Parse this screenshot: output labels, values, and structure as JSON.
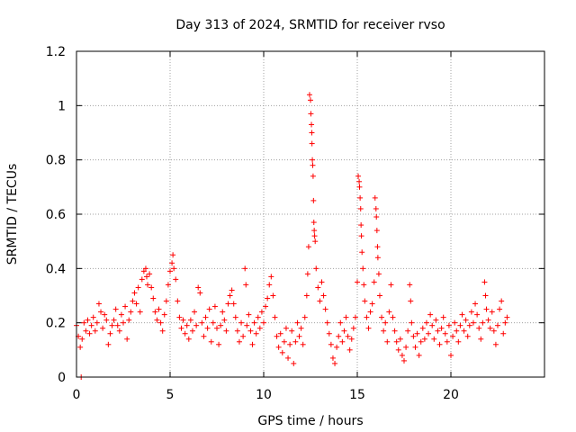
{
  "chart_data": {
    "type": "scatter",
    "title": "Day 313 of 2024, SRMTID for receiver rvso",
    "xlabel": "GPS time / hours",
    "ylabel": "SRMTID / TECUs",
    "xlim": [
      0,
      25
    ],
    "ylim": [
      0,
      1.2
    ],
    "xticks": [
      0,
      5,
      10,
      15,
      20
    ],
    "xtick_labels": [
      "0",
      "5",
      "10",
      "15",
      "20"
    ],
    "yticks": [
      0,
      0.2,
      0.4,
      0.6,
      0.8,
      1,
      1.2
    ],
    "ytick_labels": [
      "0",
      "0.2",
      "0.4",
      "0.6",
      "0.8",
      "1",
      "1.2"
    ],
    "grid": true,
    "marker": "+",
    "color": "#ff0000",
    "series": [
      {
        "name": "SRMTID",
        "points": [
          [
            0.0,
            0.19
          ],
          [
            0.1,
            0.15
          ],
          [
            0.2,
            0.11
          ],
          [
            0.25,
            0.0
          ],
          [
            0.3,
            0.14
          ],
          [
            0.4,
            0.2
          ],
          [
            0.5,
            0.17
          ],
          [
            0.6,
            0.21
          ],
          [
            0.7,
            0.16
          ],
          [
            0.8,
            0.19
          ],
          [
            0.9,
            0.22
          ],
          [
            1.0,
            0.17
          ],
          [
            1.1,
            0.2
          ],
          [
            1.2,
            0.27
          ],
          [
            1.3,
            0.24
          ],
          [
            1.4,
            0.18
          ],
          [
            1.5,
            0.23
          ],
          [
            1.6,
            0.21
          ],
          [
            1.7,
            0.12
          ],
          [
            1.8,
            0.16
          ],
          [
            1.9,
            0.19
          ],
          [
            2.0,
            0.21
          ],
          [
            2.1,
            0.25
          ],
          [
            2.2,
            0.19
          ],
          [
            2.3,
            0.17
          ],
          [
            2.4,
            0.23
          ],
          [
            2.5,
            0.2
          ],
          [
            2.6,
            0.26
          ],
          [
            2.7,
            0.14
          ],
          [
            2.8,
            0.21
          ],
          [
            2.9,
            0.24
          ],
          [
            3.0,
            0.28
          ],
          [
            3.1,
            0.31
          ],
          [
            3.2,
            0.27
          ],
          [
            3.3,
            0.33
          ],
          [
            3.4,
            0.24
          ],
          [
            3.5,
            0.36
          ],
          [
            3.6,
            0.39
          ],
          [
            3.7,
            0.4
          ],
          [
            3.75,
            0.37
          ],
          [
            3.8,
            0.34
          ],
          [
            3.9,
            0.38
          ],
          [
            4.0,
            0.33
          ],
          [
            4.1,
            0.29
          ],
          [
            4.2,
            0.24
          ],
          [
            4.3,
            0.21
          ],
          [
            4.4,
            0.25
          ],
          [
            4.5,
            0.2
          ],
          [
            4.6,
            0.17
          ],
          [
            4.7,
            0.23
          ],
          [
            4.8,
            0.28
          ],
          [
            4.9,
            0.34
          ],
          [
            5.0,
            0.39
          ],
          [
            5.1,
            0.42
          ],
          [
            5.15,
            0.45
          ],
          [
            5.2,
            0.4
          ],
          [
            5.3,
            0.36
          ],
          [
            5.4,
            0.28
          ],
          [
            5.5,
            0.22
          ],
          [
            5.6,
            0.18
          ],
          [
            5.7,
            0.21
          ],
          [
            5.8,
            0.16
          ],
          [
            5.9,
            0.19
          ],
          [
            6.0,
            0.14
          ],
          [
            6.1,
            0.21
          ],
          [
            6.2,
            0.17
          ],
          [
            6.3,
            0.24
          ],
          [
            6.4,
            0.19
          ],
          [
            6.5,
            0.33
          ],
          [
            6.6,
            0.31
          ],
          [
            6.7,
            0.2
          ],
          [
            6.8,
            0.15
          ],
          [
            6.9,
            0.22
          ],
          [
            7.0,
            0.18
          ],
          [
            7.1,
            0.25
          ],
          [
            7.2,
            0.13
          ],
          [
            7.3,
            0.2
          ],
          [
            7.4,
            0.26
          ],
          [
            7.5,
            0.18
          ],
          [
            7.6,
            0.12
          ],
          [
            7.7,
            0.19
          ],
          [
            7.8,
            0.24
          ],
          [
            7.9,
            0.21
          ],
          [
            8.0,
            0.17
          ],
          [
            8.1,
            0.27
          ],
          [
            8.2,
            0.3
          ],
          [
            8.3,
            0.32
          ],
          [
            8.4,
            0.27
          ],
          [
            8.5,
            0.22
          ],
          [
            8.6,
            0.17
          ],
          [
            8.7,
            0.13
          ],
          [
            8.8,
            0.2
          ],
          [
            8.9,
            0.15
          ],
          [
            9.0,
            0.4
          ],
          [
            9.05,
            0.34
          ],
          [
            9.1,
            0.19
          ],
          [
            9.2,
            0.23
          ],
          [
            9.3,
            0.17
          ],
          [
            9.4,
            0.12
          ],
          [
            9.5,
            0.2
          ],
          [
            9.6,
            0.16
          ],
          [
            9.7,
            0.22
          ],
          [
            9.8,
            0.18
          ],
          [
            9.9,
            0.24
          ],
          [
            10.0,
            0.2
          ],
          [
            10.1,
            0.26
          ],
          [
            10.2,
            0.29
          ],
          [
            10.3,
            0.34
          ],
          [
            10.4,
            0.37
          ],
          [
            10.5,
            0.3
          ],
          [
            10.6,
            0.22
          ],
          [
            10.7,
            0.15
          ],
          [
            10.8,
            0.11
          ],
          [
            10.9,
            0.16
          ],
          [
            11.0,
            0.09
          ],
          [
            11.1,
            0.13
          ],
          [
            11.2,
            0.18
          ],
          [
            11.3,
            0.07
          ],
          [
            11.4,
            0.12
          ],
          [
            11.5,
            0.17
          ],
          [
            11.6,
            0.05
          ],
          [
            11.7,
            0.13
          ],
          [
            11.8,
            0.2
          ],
          [
            11.9,
            0.15
          ],
          [
            12.0,
            0.18
          ],
          [
            12.1,
            0.12
          ],
          [
            12.2,
            0.22
          ],
          [
            12.3,
            0.3
          ],
          [
            12.35,
            0.38
          ],
          [
            12.4,
            0.48
          ],
          [
            12.45,
            1.04
          ],
          [
            12.5,
            1.02
          ],
          [
            12.52,
            0.97
          ],
          [
            12.55,
            0.93
          ],
          [
            12.57,
            0.9
          ],
          [
            12.58,
            0.86
          ],
          [
            12.6,
            0.8
          ],
          [
            12.62,
            0.78
          ],
          [
            12.64,
            0.74
          ],
          [
            12.66,
            0.65
          ],
          [
            12.68,
            0.57
          ],
          [
            12.7,
            0.54
          ],
          [
            12.72,
            0.52
          ],
          [
            12.75,
            0.5
          ],
          [
            12.8,
            0.4
          ],
          [
            12.9,
            0.33
          ],
          [
            13.0,
            0.28
          ],
          [
            13.1,
            0.35
          ],
          [
            13.2,
            0.3
          ],
          [
            13.3,
            0.25
          ],
          [
            13.4,
            0.2
          ],
          [
            13.5,
            0.16
          ],
          [
            13.6,
            0.12
          ],
          [
            13.7,
            0.07
          ],
          [
            13.8,
            0.05
          ],
          [
            13.9,
            0.11
          ],
          [
            14.0,
            0.15
          ],
          [
            14.1,
            0.2
          ],
          [
            14.2,
            0.13
          ],
          [
            14.3,
            0.17
          ],
          [
            14.4,
            0.22
          ],
          [
            14.5,
            0.15
          ],
          [
            14.6,
            0.1
          ],
          [
            14.7,
            0.14
          ],
          [
            14.8,
            0.18
          ],
          [
            14.9,
            0.22
          ],
          [
            15.0,
            0.35
          ],
          [
            15.05,
            0.74
          ],
          [
            15.1,
            0.72
          ],
          [
            15.12,
            0.7
          ],
          [
            15.15,
            0.66
          ],
          [
            15.18,
            0.62
          ],
          [
            15.2,
            0.56
          ],
          [
            15.22,
            0.52
          ],
          [
            15.25,
            0.46
          ],
          [
            15.3,
            0.4
          ],
          [
            15.35,
            0.34
          ],
          [
            15.4,
            0.28
          ],
          [
            15.5,
            0.22
          ],
          [
            15.6,
            0.18
          ],
          [
            15.7,
            0.24
          ],
          [
            15.8,
            0.27
          ],
          [
            15.9,
            0.35
          ],
          [
            15.95,
            0.66
          ],
          [
            16.0,
            0.62
          ],
          [
            16.02,
            0.59
          ],
          [
            16.05,
            0.54
          ],
          [
            16.08,
            0.48
          ],
          [
            16.1,
            0.44
          ],
          [
            16.15,
            0.38
          ],
          [
            16.2,
            0.3
          ],
          [
            16.3,
            0.22
          ],
          [
            16.4,
            0.17
          ],
          [
            16.5,
            0.2
          ],
          [
            16.6,
            0.13
          ],
          [
            16.7,
            0.24
          ],
          [
            16.8,
            0.34
          ],
          [
            16.9,
            0.22
          ],
          [
            17.0,
            0.17
          ],
          [
            17.1,
            0.13
          ],
          [
            17.2,
            0.1
          ],
          [
            17.3,
            0.14
          ],
          [
            17.4,
            0.08
          ],
          [
            17.5,
            0.06
          ],
          [
            17.6,
            0.11
          ],
          [
            17.7,
            0.17
          ],
          [
            17.8,
            0.34
          ],
          [
            17.85,
            0.28
          ],
          [
            17.9,
            0.2
          ],
          [
            18.0,
            0.15
          ],
          [
            18.1,
            0.11
          ],
          [
            18.2,
            0.16
          ],
          [
            18.3,
            0.08
          ],
          [
            18.4,
            0.13
          ],
          [
            18.5,
            0.18
          ],
          [
            18.6,
            0.14
          ],
          [
            18.7,
            0.2
          ],
          [
            18.8,
            0.16
          ],
          [
            18.9,
            0.23
          ],
          [
            19.0,
            0.19
          ],
          [
            19.1,
            0.14
          ],
          [
            19.2,
            0.21
          ],
          [
            19.3,
            0.17
          ],
          [
            19.4,
            0.12
          ],
          [
            19.5,
            0.18
          ],
          [
            19.6,
            0.22
          ],
          [
            19.7,
            0.16
          ],
          [
            19.8,
            0.13
          ],
          [
            19.9,
            0.19
          ],
          [
            20.0,
            0.08
          ],
          [
            20.1,
            0.15
          ],
          [
            20.2,
            0.2
          ],
          [
            20.3,
            0.17
          ],
          [
            20.4,
            0.13
          ],
          [
            20.5,
            0.19
          ],
          [
            20.6,
            0.23
          ],
          [
            20.7,
            0.17
          ],
          [
            20.8,
            0.21
          ],
          [
            20.9,
            0.15
          ],
          [
            21.0,
            0.19
          ],
          [
            21.1,
            0.24
          ],
          [
            21.2,
            0.2
          ],
          [
            21.3,
            0.27
          ],
          [
            21.4,
            0.23
          ],
          [
            21.5,
            0.18
          ],
          [
            21.6,
            0.14
          ],
          [
            21.7,
            0.2
          ],
          [
            21.8,
            0.35
          ],
          [
            21.85,
            0.3
          ],
          [
            21.9,
            0.25
          ],
          [
            22.0,
            0.21
          ],
          [
            22.1,
            0.18
          ],
          [
            22.2,
            0.24
          ],
          [
            22.3,
            0.17
          ],
          [
            22.4,
            0.12
          ],
          [
            22.5,
            0.19
          ],
          [
            22.6,
            0.25
          ],
          [
            22.7,
            0.28
          ],
          [
            22.8,
            0.16
          ],
          [
            22.9,
            0.2
          ],
          [
            23.0,
            0.22
          ]
        ]
      }
    ]
  }
}
